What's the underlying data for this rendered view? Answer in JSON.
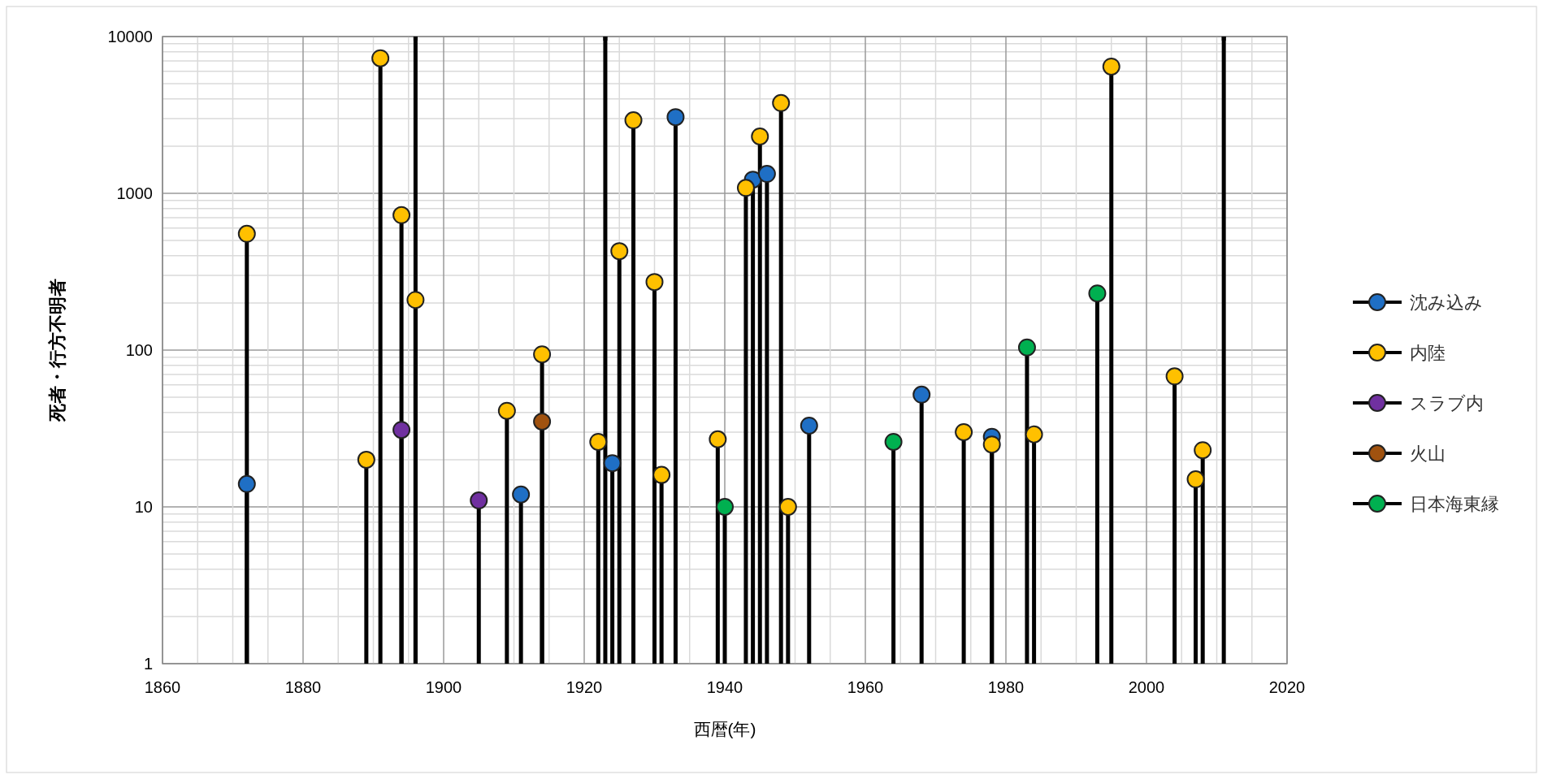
{
  "chart_data": {
    "type": "lollipop",
    "xlabel": "西暦(年)",
    "ylabel": "死者・行方不明者",
    "xlim": [
      1860,
      2020
    ],
    "xticks": [
      1860,
      1880,
      1900,
      1920,
      1940,
      1960,
      1980,
      2000,
      2020
    ],
    "ylim": [
      1,
      10000
    ],
    "yticks": [
      1,
      10,
      100,
      1000,
      10000
    ],
    "log": "y",
    "grid": true,
    "legend": "right",
    "marker": "circle",
    "series": [
      {
        "name": "沈み込み",
        "color": "#1f6fc5",
        "x": [
          1872,
          1911,
          1924,
          1933,
          1944,
          1946,
          1952,
          1968,
          1978
        ],
        "values": [
          14,
          12,
          19,
          3064,
          1223,
          1330,
          33,
          52,
          28
        ]
      },
      {
        "name": "内陸",
        "color": "#ffc000",
        "x": [
          1872,
          1889,
          1891,
          1894,
          1896,
          1909,
          1914,
          1922,
          1925,
          1927,
          1930,
          1931,
          1939,
          1943,
          1945,
          1948,
          1949,
          1974,
          1978,
          1984,
          1995,
          2004,
          2007,
          2008
        ],
        "values": [
          552,
          20,
          7273,
          726,
          209,
          41,
          94,
          26,
          428,
          2925,
          272,
          16,
          27,
          1083,
          2306,
          3769,
          10,
          30,
          25,
          29,
          6434,
          68,
          15,
          23
        ]
      },
      {
        "name": "スラブ内",
        "color": "#7030a0",
        "x": [
          1894,
          1905
        ],
        "values": [
          31,
          11
        ]
      },
      {
        "name": "火山",
        "color": "#a0520f",
        "x": [
          1914
        ],
        "values": [
          35
        ]
      },
      {
        "name": "日本海東縁",
        "color": "#00b050",
        "x": [
          1940,
          1964,
          1983,
          1993
        ],
        "values": [
          10,
          26,
          104,
          230
        ]
      },
      {
        "color": "#000000",
        "marker": "square",
        "x": [
          1896,
          1923,
          2011
        ],
        "values": [
          10000,
          10000,
          10000
        ]
      }
    ]
  }
}
